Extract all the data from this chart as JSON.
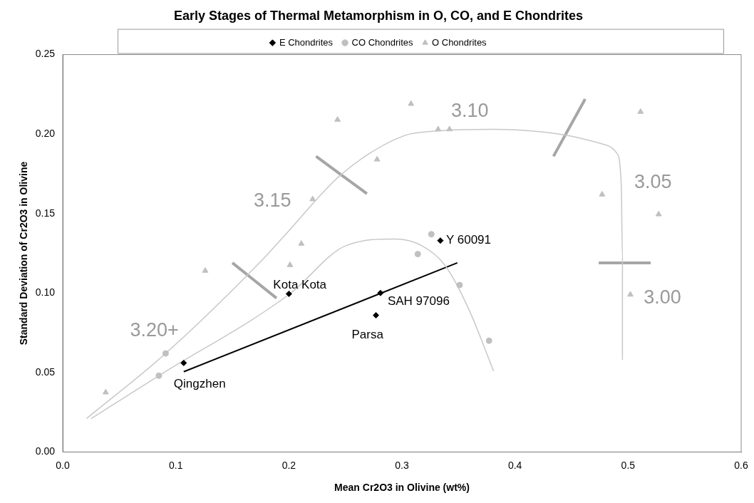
{
  "chart_data": {
    "type": "scatter",
    "title": "Early Stages of Thermal Metamorphism in O, CO, and E Chondrites",
    "xlabel": "Mean Cr2O3 in Olivine (wt%)",
    "ylabel": "Standard Deviation of Cr2O3 in Olivine",
    "xlim": [
      0,
      0.6
    ],
    "xticks": [
      {
        "value": 0,
        "label": "0.0"
      },
      {
        "value": 0.1,
        "label": "0.1"
      },
      {
        "value": 0.2,
        "label": "0.2"
      },
      {
        "value": 0.3,
        "label": "0.3"
      },
      {
        "value": 0.4,
        "label": "0.4"
      },
      {
        "value": 0.5,
        "label": "0.5"
      },
      {
        "value": 0.6,
        "label": "0.6"
      }
    ],
    "ylim": [
      0,
      0.25
    ],
    "yticks": [
      {
        "value": 0,
        "label": "0.00"
      },
      {
        "value": 0.05,
        "label": "0.05"
      },
      {
        "value": 0.1,
        "label": "0.10"
      },
      {
        "value": 0.15,
        "label": "0.15"
      },
      {
        "value": 0.2,
        "label": "0.20"
      },
      {
        "value": 0.25,
        "label": "0.25"
      }
    ],
    "grid": false,
    "legend": "top",
    "series": [
      {
        "name": "E Chondrites",
        "type": "scatter",
        "marker": "diamond",
        "color": "#000000",
        "x": [
          0.107,
          0.2,
          0.281,
          0.277,
          0.334
        ],
        "values": [
          0.056,
          0.0995,
          0.1,
          0.086,
          0.133
        ]
      },
      {
        "name": "CO Chondrites",
        "type": "scatter",
        "marker": "circle",
        "color": "#c0c0c0",
        "x": [
          0.085,
          0.091,
          0.326,
          0.314,
          0.351,
          0.377
        ],
        "values": [
          0.048,
          0.062,
          0.137,
          0.1245,
          0.105,
          0.07
        ]
      },
      {
        "name": "O Chondrites",
        "type": "scatter",
        "marker": "triangle",
        "color": "#c0c0c0",
        "x": [
          0.038,
          0.126,
          0.201,
          0.211,
          0.221,
          0.243,
          0.278,
          0.308,
          0.332,
          0.342,
          0.477,
          0.511,
          0.527,
          0.502
        ],
        "values": [
          0.0375,
          0.114,
          0.1176,
          0.131,
          0.159,
          0.209,
          0.184,
          0.219,
          0.203,
          0.203,
          0.162,
          0.214,
          0.1495,
          0.099
        ]
      },
      {
        "type": "line",
        "marker": "none",
        "color": "#c8c8c8",
        "x": [
          0.021,
          0.091,
          0.178,
          0.196,
          0.247,
          0.302,
          0.332,
          0.38,
          0.443,
          0.481,
          0.49,
          0.494,
          0.495,
          0.495
        ],
        "values": [
          0.021,
          0.062,
          0.122,
          0.136,
          0.175,
          0.199,
          0.202,
          0.203,
          0.1995,
          0.193,
          0.188,
          0.167,
          0.122,
          0.058
        ]
      },
      {
        "type": "line",
        "marker": "none",
        "color": "#c8c8c8",
        "x": [
          0.025,
          0.085,
          0.2,
          0.251,
          0.294,
          0.317,
          0.338,
          0.359,
          0.381
        ],
        "values": [
          0.021,
          0.048,
          0.099,
          0.13,
          0.134,
          0.13,
          0.1175,
          0.09,
          0.051
        ]
      },
      {
        "type": "line",
        "marker": "none",
        "color": "#000000",
        "x": [
          0.107,
          0.349
        ],
        "values": [
          0.0505,
          0.119
        ]
      },
      {
        "type": "line",
        "marker": "none",
        "color": "#a6a6a6",
        "x": [
          0.15,
          0.189
        ],
        "values": [
          0.119,
          0.0968
        ]
      },
      {
        "type": "line",
        "marker": "none",
        "color": "#a6a6a6",
        "x": [
          0.224,
          0.269
        ],
        "values": [
          0.186,
          0.1625
        ]
      },
      {
        "type": "line",
        "marker": "none",
        "color": "#a6a6a6",
        "x": [
          0.462,
          0.434
        ],
        "values": [
          0.222,
          0.186
        ]
      },
      {
        "type": "line",
        "marker": "none",
        "color": "#a6a6a6",
        "x": [
          0.474,
          0.52
        ],
        "values": [
          0.119,
          0.119
        ]
      }
    ],
    "annotations": [
      {
        "text": "Qingzhen",
        "x": 0.107,
        "y": 0.056
      },
      {
        "text": "Kota Kota",
        "x": 0.2,
        "y": 0.0995
      },
      {
        "text": "SAH 97096",
        "x": 0.281,
        "y": 0.1
      },
      {
        "text": "Parsa",
        "x": 0.277,
        "y": 0.086
      },
      {
        "text": "Y 60091",
        "x": 0.334,
        "y": 0.133
      },
      "3.10",
      "3.05",
      "3.15",
      "3.20+",
      "3.00"
    ]
  }
}
